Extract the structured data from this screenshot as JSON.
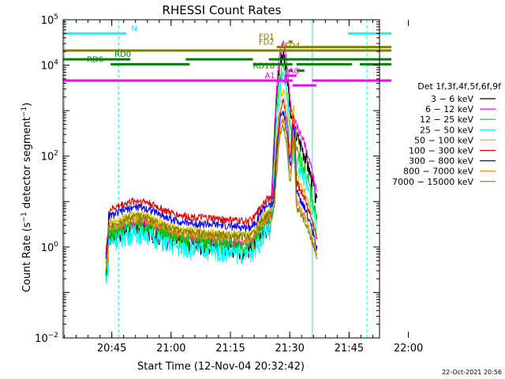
{
  "chart_data": {
    "type": "line",
    "title": "RHESSI Count Rates",
    "xlabel": "Start Time (12-Nov-04 20:32:42)",
    "ylabel": "Count Rate (s⁻¹ detector segment⁻¹)",
    "ylabel_main": "Count Rate (s",
    "ylabel_sup1": "−1",
    "ylabel_mid": " detector segment",
    "ylabel_sup2": "−1",
    "ylabel_end": ")",
    "yscale": "log",
    "xlim_min": [
      0,
      80
    ],
    "ylim": [
      0.01,
      100000
    ],
    "x_ticks": [
      {
        "label": "20:45",
        "min": 12.3
      },
      {
        "label": "21:00",
        "min": 27.3
      },
      {
        "label": "21:15",
        "min": 42.3
      },
      {
        "label": "21:30",
        "min": 57.3
      },
      {
        "label": "21:45",
        "min": 72.3
      },
      {
        "label": "22:00",
        "min": 87.3
      }
    ],
    "y_ticks": [
      {
        "base": "10",
        "exp": "−2",
        "value": 0.01
      },
      {
        "base": "10",
        "exp": "0",
        "value": 1
      },
      {
        "base": "10",
        "exp": "2",
        "value": 100
      },
      {
        "base": "10",
        "exp": "4",
        "value": 10000
      },
      {
        "base": "10",
        "exp": "5",
        "value": 100000
      }
    ],
    "legend_title": "Det 1f,3f,4f,5f,6f,9f",
    "legend_placement": "right",
    "series": [
      {
        "name": "3 − 6 keV",
        "color": "#000000",
        "base": 1.4,
        "peak": 18000
      },
      {
        "name": "6 − 12 keV",
        "color": "#ff00ff",
        "base": 1.8,
        "peak": 30000
      },
      {
        "name": "12 − 25 keV",
        "color": "#00d000",
        "base": 1.7,
        "peak": 8000
      },
      {
        "name": "25 − 50 keV",
        "color": "#00ffff",
        "base": 1.1,
        "peak": 5000
      },
      {
        "name": "50 − 100 keV",
        "color": "#e0c000",
        "base": 2.8,
        "peak": 2500
      },
      {
        "name": "100 − 300 keV",
        "color": "#e00000",
        "base": 5.5,
        "peak": 1500
      },
      {
        "name": "300 − 800 keV",
        "color": "#0000ff",
        "base": 4.0,
        "peak": 900
      },
      {
        "name": "800 − 7000 keV",
        "color": "#ff8000",
        "base": 2.2,
        "peak": 600
      },
      {
        "name": "7000 − 15000 keV",
        "color": "#808000",
        "base": 2.5,
        "peak": 400
      }
    ],
    "flags": [
      {
        "label": "N",
        "color": "#00ffff",
        "level": 50000,
        "segments": [
          [
            0,
            16
          ],
          [
            72,
            83
          ]
        ]
      },
      {
        "label": "FD1",
        "color": "#808000",
        "level": 33000,
        "segments": [
          [
            57,
            58
          ]
        ]
      },
      {
        "label": "FD2",
        "color": "#808000",
        "level": 25000,
        "segments": [
          [
            54,
            83
          ]
        ]
      },
      {
        "label": "FD4",
        "color": "#808000",
        "level": 21000,
        "segments": [
          [
            0,
            83
          ]
        ]
      },
      {
        "label": "RD0",
        "color": "#008000",
        "level": 13500,
        "segments": [
          [
            0,
            17
          ],
          [
            31,
            48
          ],
          [
            52,
            83
          ]
        ]
      },
      {
        "label": "RD6",
        "color": "#008000",
        "level": 10500,
        "segments": [
          [
            12,
            32
          ],
          [
            48,
            58
          ],
          [
            59,
            73
          ],
          [
            75,
            83
          ]
        ]
      },
      {
        "label": "RD16",
        "color": "#008000",
        "level": 7600,
        "segments": [
          [
            57,
            58
          ],
          [
            59,
            61
          ]
        ]
      },
      {
        "label": "AO",
        "color": "#ff00ff",
        "level": 5900,
        "segments": [
          [
            56,
            59
          ]
        ]
      },
      {
        "label": "A1",
        "color": "#ff00ff",
        "level": 4600,
        "segments": [
          [
            0,
            58
          ],
          [
            63,
            83
          ]
        ]
      },
      {
        "label": "A3",
        "color": "#ff00ff",
        "level": 3600,
        "segments": [
          [
            58,
            64
          ]
        ]
      }
    ],
    "footer_date": "22-Oct-2021 20:56"
  }
}
